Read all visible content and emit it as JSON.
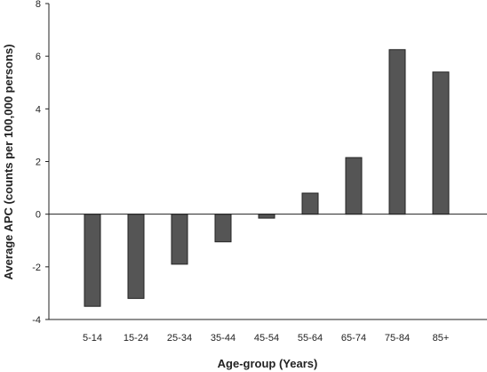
{
  "chart_data": {
    "type": "bar",
    "title": "",
    "xlabel": "Age-group (Years)",
    "ylabel": "Average APC (counts per 100,000 persons)",
    "categories": [
      "5-14",
      "15-24",
      "25-34",
      "35-44",
      "45-54",
      "55-64",
      "65-74",
      "75-84",
      "85+"
    ],
    "values": [
      -3.5,
      -3.2,
      -1.9,
      -1.05,
      -0.15,
      0.8,
      2.15,
      6.25,
      5.4
    ],
    "ylim": [
      -4,
      8
    ],
    "yticks": [
      8,
      6,
      4,
      2,
      0,
      -2,
      -4
    ],
    "grid": false,
    "legend": "none",
    "bar_color": "#555555",
    "bar_edge_color": "#222222"
  }
}
